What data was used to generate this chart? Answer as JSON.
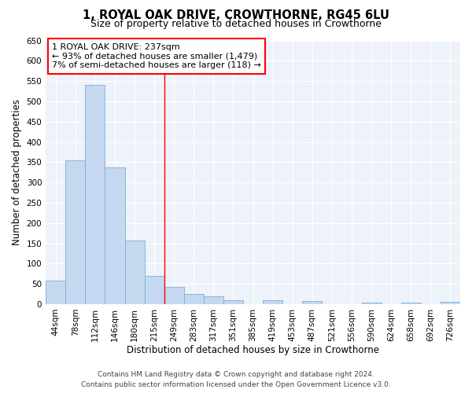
{
  "title": "1, ROYAL OAK DRIVE, CROWTHORNE, RG45 6LU",
  "subtitle": "Size of property relative to detached houses in Crowthorne",
  "xlabel": "Distribution of detached houses by size in Crowthorne",
  "ylabel": "Number of detached properties",
  "bar_color": "#c5d8f0",
  "bar_edge_color": "#7bafd4",
  "background_color": "#eef2fa",
  "grid_color": "#ffffff",
  "categories": [
    "44sqm",
    "78sqm",
    "112sqm",
    "146sqm",
    "180sqm",
    "215sqm",
    "249sqm",
    "283sqm",
    "317sqm",
    "351sqm",
    "385sqm",
    "419sqm",
    "453sqm",
    "487sqm",
    "521sqm",
    "556sqm",
    "590sqm",
    "624sqm",
    "658sqm",
    "692sqm",
    "726sqm"
  ],
  "values": [
    58,
    355,
    540,
    338,
    157,
    70,
    42,
    25,
    20,
    10,
    0,
    9,
    0,
    8,
    0,
    0,
    4,
    0,
    4,
    0,
    5
  ],
  "ylim": [
    0,
    650
  ],
  "yticks": [
    0,
    50,
    100,
    150,
    200,
    250,
    300,
    350,
    400,
    450,
    500,
    550,
    600,
    650
  ],
  "property_label": "1 ROYAL OAK DRIVE: 237sqm",
  "annotation_line1": "← 93% of detached houses are smaller (1,479)",
  "annotation_line2": "7% of semi-detached houses are larger (118) →",
  "vline_position": 6.0,
  "footer_line1": "Contains HM Land Registry data © Crown copyright and database right 2024.",
  "footer_line2": "Contains public sector information licensed under the Open Government Licence v3.0.",
  "title_fontsize": 10.5,
  "subtitle_fontsize": 9,
  "axis_label_fontsize": 8.5,
  "tick_fontsize": 7.5,
  "annotation_fontsize": 8,
  "footer_fontsize": 6.5
}
